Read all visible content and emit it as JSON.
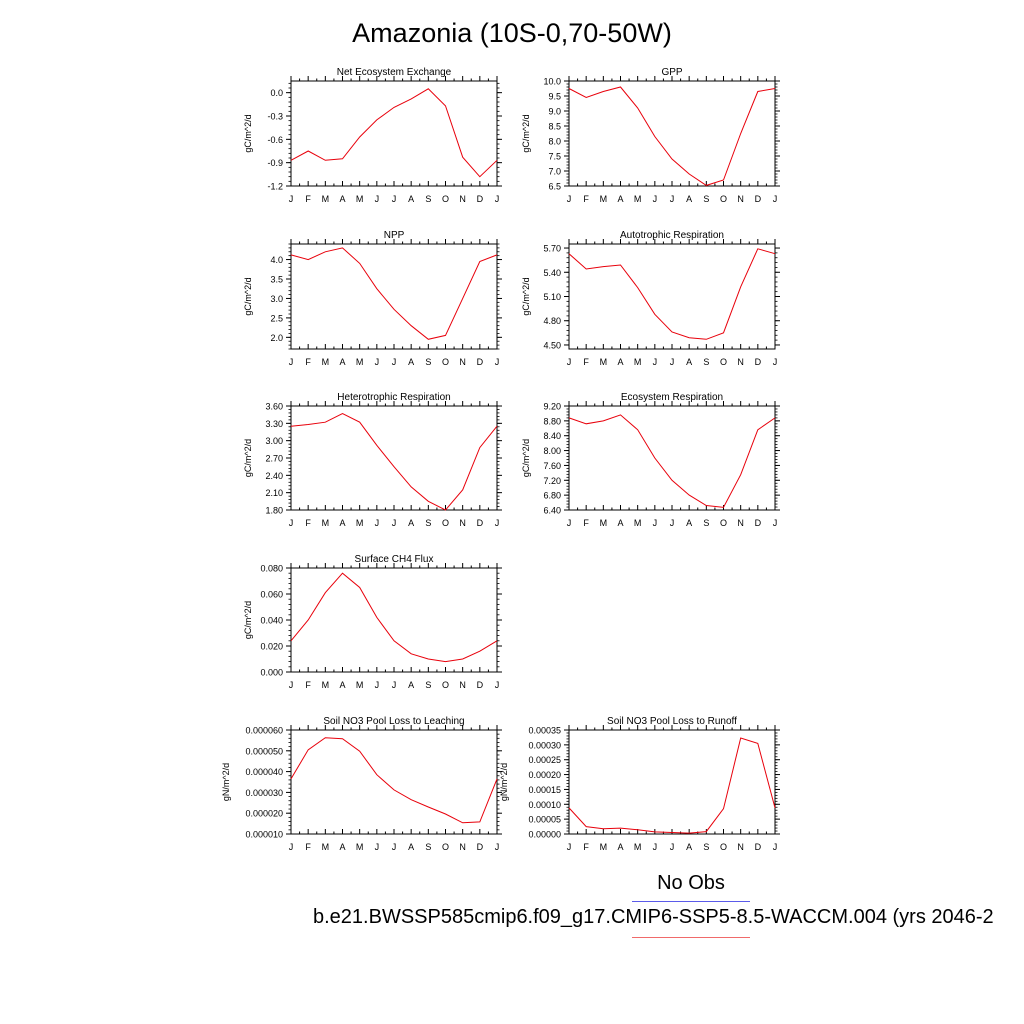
{
  "title": "Amazonia (10S-0,70-50W)",
  "months": [
    "J",
    "F",
    "M",
    "A",
    "M",
    "J",
    "J",
    "A",
    "S",
    "O",
    "N",
    "D",
    "J"
  ],
  "legend": {
    "obs_label": "No Obs",
    "obs_color": "#5b5bea",
    "model_label": "b.e21.BWSSP585cmip6.f09_g17.CMIP6-SSP5-8.5-WACCM.004 (yrs 2046-2",
    "model_color": "#f06a6a"
  },
  "line_color": "#e8000b",
  "chart_data": [
    {
      "type": "line",
      "title": "Net Ecosystem Exchange",
      "ylabel": "gC/m^2/d",
      "ylim": [
        -1.2,
        0.15
      ],
      "yticks": [
        -1.2,
        -0.9,
        -0.6,
        -0.3,
        0.0
      ],
      "ytick_labels": [
        "-1.2",
        "-0.9",
        "-0.6",
        "-0.3",
        "0.0"
      ],
      "values": [
        -0.87,
        -0.75,
        -0.87,
        -0.85,
        -0.57,
        -0.35,
        -0.19,
        -0.08,
        0.05,
        -0.17,
        -0.83,
        -1.08,
        -0.87
      ]
    },
    {
      "type": "line",
      "title": "GPP",
      "ylabel": "gC/m^2/d",
      "ylim": [
        6.5,
        10.0
      ],
      "yticks": [
        6.5,
        7.0,
        7.5,
        8.0,
        8.5,
        9.0,
        9.5,
        10.0
      ],
      "ytick_labels": [
        "6.5",
        "7.0",
        "7.5",
        "8.0",
        "8.5",
        "9.0",
        "9.5",
        "10.0"
      ],
      "values": [
        9.75,
        9.45,
        9.65,
        9.8,
        9.1,
        8.15,
        7.4,
        6.9,
        6.52,
        6.7,
        8.25,
        9.65,
        9.75
      ]
    },
    {
      "type": "line",
      "title": "NPP",
      "ylabel": "gC/m^2/d",
      "ylim": [
        1.7,
        4.4
      ],
      "yticks": [
        2.0,
        2.5,
        3.0,
        3.5,
        4.0
      ],
      "ytick_labels": [
        "2.0",
        "2.5",
        "3.0",
        "3.5",
        "4.0"
      ],
      "values": [
        4.12,
        4.0,
        4.2,
        4.3,
        3.9,
        3.25,
        2.72,
        2.3,
        1.95,
        2.05,
        3.0,
        3.95,
        4.12
      ]
    },
    {
      "type": "line",
      "title": "Autotrophic Respiration",
      "ylabel": "gC/m^2/d",
      "ylim": [
        4.45,
        5.75
      ],
      "yticks": [
        4.5,
        4.8,
        5.1,
        5.4,
        5.7
      ],
      "ytick_labels": [
        "4.50",
        "4.80",
        "5.10",
        "5.40",
        "5.70"
      ],
      "values": [
        5.63,
        5.44,
        5.47,
        5.49,
        5.21,
        4.88,
        4.66,
        4.59,
        4.57,
        4.65,
        5.22,
        5.69,
        5.63
      ]
    },
    {
      "type": "line",
      "title": "Heterotrophic Respiration",
      "ylabel": "gC/m^2/d",
      "ylim": [
        1.8,
        3.6
      ],
      "yticks": [
        1.8,
        2.1,
        2.4,
        2.7,
        3.0,
        3.3,
        3.6
      ],
      "ytick_labels": [
        "1.80",
        "2.10",
        "2.40",
        "2.70",
        "3.00",
        "3.30",
        "3.60"
      ],
      "values": [
        3.25,
        3.28,
        3.32,
        3.47,
        3.32,
        2.92,
        2.55,
        2.2,
        1.95,
        1.8,
        2.15,
        2.88,
        3.25
      ]
    },
    {
      "type": "line",
      "title": "Ecosystem Respiration",
      "ylabel": "gC/m^2/d",
      "ylim": [
        6.4,
        9.2
      ],
      "yticks": [
        6.4,
        6.8,
        7.2,
        7.6,
        8.0,
        8.4,
        8.8,
        9.2
      ],
      "ytick_labels": [
        "6.40",
        "6.80",
        "7.20",
        "7.60",
        "8.00",
        "8.40",
        "8.80",
        "9.20"
      ],
      "values": [
        8.88,
        8.72,
        8.8,
        8.96,
        8.56,
        7.8,
        7.2,
        6.8,
        6.52,
        6.47,
        7.35,
        8.56,
        8.88
      ]
    },
    {
      "type": "line",
      "title": "Surface CH4 Flux",
      "ylabel": "gC/m^2/d",
      "ylim": [
        0.0,
        0.08
      ],
      "yticks": [
        0.0,
        0.02,
        0.04,
        0.06,
        0.08
      ],
      "ytick_labels": [
        "0.000",
        "0.020",
        "0.040",
        "0.060",
        "0.080"
      ],
      "values": [
        0.024,
        0.04,
        0.061,
        0.076,
        0.065,
        0.042,
        0.024,
        0.014,
        0.01,
        0.008,
        0.01,
        0.016,
        0.024
      ]
    },
    {
      "type": "line",
      "title": "Soil NO3 Pool Loss to Leaching",
      "ylabel": "gN/m^2/d",
      "ylim": [
        1e-05,
        6e-05
      ],
      "yticks": [
        1e-05,
        2e-05,
        3e-05,
        4e-05,
        5e-05,
        6e-05
      ],
      "ytick_labels": [
        "0.000010",
        "0.000020",
        "0.000030",
        "0.000040",
        "0.000050",
        "0.000060"
      ],
      "values": [
        3.65e-05,
        5.05e-05,
        5.63e-05,
        5.58e-05,
        4.98e-05,
        3.85e-05,
        3.12e-05,
        2.65e-05,
        2.3e-05,
        1.96e-05,
        1.54e-05,
        1.58e-05,
        3.65e-05
      ]
    },
    {
      "type": "line",
      "title": "Soil NO3 Pool Loss to Runoff",
      "ylabel": "gN/m^2/d",
      "ylim": [
        0.0,
        0.00035
      ],
      "yticks": [
        0.0,
        5e-05,
        0.0001,
        0.00015,
        0.0002,
        0.00025,
        0.0003,
        0.00035
      ],
      "ytick_labels": [
        "0.00000",
        "0.00005",
        "0.00010",
        "0.00015",
        "0.00020",
        "0.00025",
        "0.00030",
        "0.00035"
      ],
      "values": [
        8.8e-05,
        2.5e-05,
        1.8e-05,
        2e-05,
        1.4e-05,
        7e-06,
        5e-06,
        3e-06,
        8e-06,
        8.5e-05,
        0.000323,
        0.000305,
        8.8e-05
      ]
    }
  ]
}
